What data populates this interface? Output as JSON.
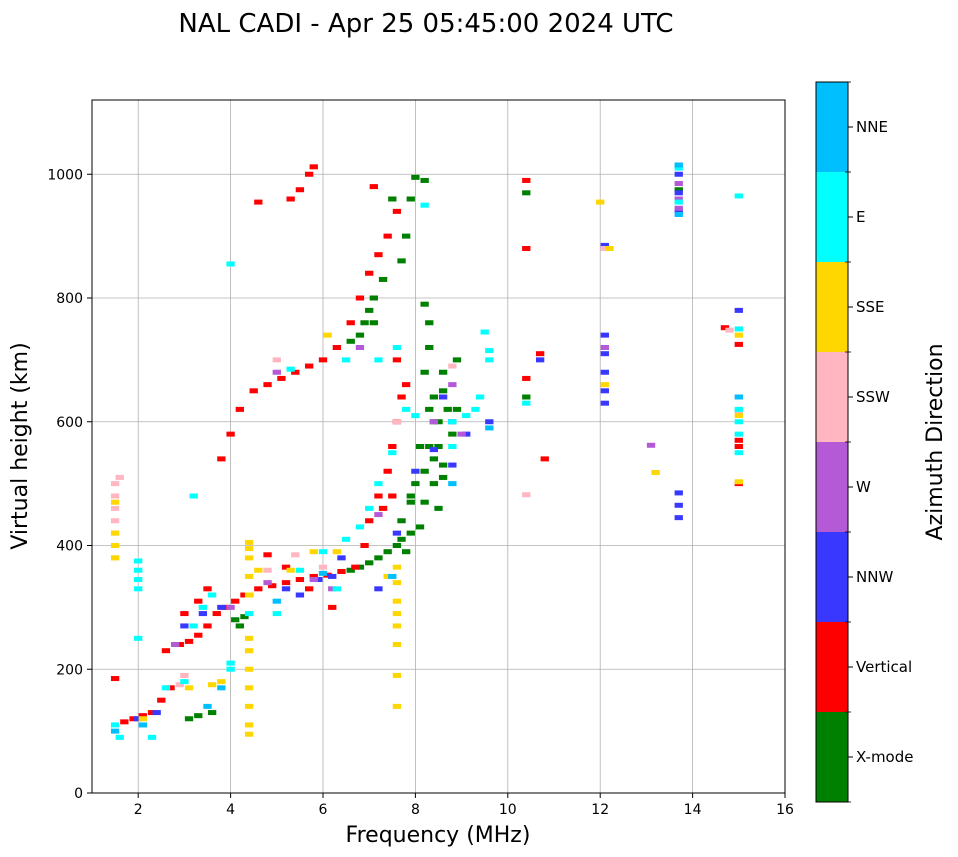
{
  "chart_data": {
    "type": "scatter",
    "title": "NAL CADI - Apr 25 05:45:00 2024 UTC",
    "xlabel": "Frequency (MHz)",
    "ylabel": "Virtual height (km)",
    "xlim": [
      1,
      16
    ],
    "ylim": [
      0,
      1120
    ],
    "xticks": [
      2,
      4,
      6,
      8,
      10,
      12,
      14,
      16
    ],
    "yticks": [
      0,
      200,
      400,
      600,
      800,
      1000
    ],
    "grid": true,
    "colorbar": {
      "label": "Azimuth Direction",
      "categories": [
        "X-mode",
        "Vertical",
        "NNW",
        "W",
        "SSW",
        "SSE",
        "E",
        "NNE"
      ],
      "colors": [
        "#008000",
        "#ff0000",
        "#3838ff",
        "#b45ad6",
        "#ffb6c1",
        "#ffd700",
        "#00ffff",
        "#00bfff"
      ]
    },
    "series": [
      {
        "name": "X-mode",
        "points": [
          [
            3.1,
            120
          ],
          [
            3.3,
            125
          ],
          [
            3.6,
            130
          ],
          [
            4.1,
            280
          ],
          [
            4.3,
            285
          ],
          [
            4.2,
            270
          ],
          [
            6.6,
            360
          ],
          [
            6.8,
            365
          ],
          [
            7.0,
            372
          ],
          [
            7.2,
            380
          ],
          [
            7.4,
            390
          ],
          [
            7.6,
            400
          ],
          [
            7.9,
            420
          ],
          [
            7.9,
            470
          ],
          [
            8.0,
            500
          ],
          [
            8.2,
            520
          ],
          [
            8.3,
            560
          ],
          [
            8.5,
            600
          ],
          [
            8.4,
            640
          ],
          [
            8.6,
            650
          ],
          [
            8.2,
            680
          ],
          [
            8.3,
            720
          ],
          [
            8.3,
            760
          ],
          [
            8.2,
            790
          ],
          [
            8.0,
            995
          ],
          [
            8.2,
            990
          ],
          [
            7.9,
            960
          ],
          [
            7.5,
            960
          ],
          [
            7.8,
            900
          ],
          [
            7.7,
            860
          ],
          [
            7.3,
            830
          ],
          [
            7.1,
            800
          ],
          [
            7.0,
            780
          ],
          [
            6.9,
            760
          ],
          [
            6.6,
            730
          ],
          [
            6.8,
            740
          ],
          [
            7.1,
            760
          ],
          [
            8.6,
            530
          ],
          [
            8.5,
            560
          ],
          [
            8.4,
            600
          ],
          [
            8.7,
            620
          ],
          [
            8.9,
            700
          ],
          [
            8.4,
            540
          ],
          [
            8.6,
            510
          ],
          [
            8.2,
            470
          ],
          [
            7.9,
            480
          ],
          [
            7.7,
            440
          ],
          [
            8.1,
            430
          ],
          [
            10.4,
            970
          ],
          [
            13.7,
            975
          ],
          [
            10.4,
            640
          ],
          [
            7.7,
            410
          ],
          [
            7.8,
            390
          ],
          [
            8.1,
            560
          ],
          [
            8.6,
            680
          ],
          [
            8.3,
            620
          ],
          [
            8.4,
            500
          ],
          [
            8.5,
            460
          ],
          [
            8.8,
            580
          ],
          [
            8.9,
            620
          ]
        ]
      },
      {
        "name": "Vertical",
        "points": [
          [
            1.5,
            185
          ],
          [
            1.7,
            115
          ],
          [
            1.9,
            120
          ],
          [
            2.1,
            125
          ],
          [
            2.3,
            130
          ],
          [
            2.5,
            150
          ],
          [
            2.7,
            170
          ],
          [
            2.9,
            240
          ],
          [
            3.1,
            245
          ],
          [
            3.3,
            255
          ],
          [
            3.5,
            270
          ],
          [
            3.7,
            290
          ],
          [
            3.9,
            300
          ],
          [
            4.1,
            310
          ],
          [
            4.3,
            320
          ],
          [
            4.6,
            330
          ],
          [
            4.9,
            335
          ],
          [
            5.2,
            340
          ],
          [
            5.5,
            345
          ],
          [
            5.8,
            350
          ],
          [
            6.1,
            352
          ],
          [
            6.4,
            358
          ],
          [
            6.7,
            365
          ],
          [
            6.9,
            400
          ],
          [
            7.0,
            440
          ],
          [
            7.2,
            480
          ],
          [
            7.4,
            520
          ],
          [
            7.5,
            560
          ],
          [
            7.6,
            600
          ],
          [
            7.7,
            640
          ],
          [
            7.8,
            660
          ],
          [
            7.6,
            700
          ],
          [
            7.5,
            480
          ],
          [
            7.3,
            460
          ],
          [
            3.8,
            540
          ],
          [
            4.0,
            580
          ],
          [
            4.2,
            620
          ],
          [
            4.5,
            650
          ],
          [
            4.8,
            660
          ],
          [
            5.1,
            670
          ],
          [
            5.4,
            680
          ],
          [
            5.7,
            690
          ],
          [
            6.0,
            700
          ],
          [
            6.3,
            720
          ],
          [
            6.6,
            760
          ],
          [
            6.8,
            800
          ],
          [
            7.0,
            840
          ],
          [
            7.2,
            870
          ],
          [
            7.4,
            900
          ],
          [
            7.6,
            940
          ],
          [
            7.1,
            980
          ],
          [
            5.3,
            960
          ],
          [
            5.5,
            975
          ],
          [
            5.7,
            1000
          ],
          [
            5.8,
            1012
          ],
          [
            4.6,
            955
          ],
          [
            10.4,
            990
          ],
          [
            10.4,
            880
          ],
          [
            10.4,
            670
          ],
          [
            10.7,
            710
          ],
          [
            10.8,
            540
          ],
          [
            15.0,
            560
          ],
          [
            15.0,
            570
          ],
          [
            14.7,
            752
          ],
          [
            15.0,
            500
          ],
          [
            15.0,
            725
          ],
          [
            3.3,
            310
          ],
          [
            3.0,
            290
          ],
          [
            2.6,
            230
          ],
          [
            3.5,
            330
          ],
          [
            4.8,
            385
          ],
          [
            5.2,
            365
          ],
          [
            5.7,
            330
          ],
          [
            6.2,
            300
          ]
        ]
      },
      {
        "name": "NNW",
        "points": [
          [
            2.0,
            120
          ],
          [
            2.4,
            130
          ],
          [
            3.0,
            270
          ],
          [
            3.4,
            290
          ],
          [
            3.8,
            300
          ],
          [
            4.4,
            320
          ],
          [
            5.2,
            330
          ],
          [
            5.9,
            345
          ],
          [
            6.4,
            380
          ],
          [
            7.2,
            330
          ],
          [
            7.6,
            420
          ],
          [
            8.0,
            520
          ],
          [
            8.4,
            555
          ],
          [
            8.8,
            530
          ],
          [
            8.8,
            600
          ],
          [
            9.1,
            580
          ],
          [
            9.6,
            600
          ],
          [
            10.7,
            700
          ],
          [
            12.1,
            630
          ],
          [
            12.1,
            650
          ],
          [
            12.1,
            680
          ],
          [
            12.1,
            710
          ],
          [
            12.1,
            740
          ],
          [
            12.1,
            885
          ],
          [
            13.7,
            445
          ],
          [
            13.7,
            465
          ],
          [
            13.7,
            485
          ],
          [
            13.7,
            940
          ],
          [
            13.7,
            970
          ],
          [
            13.7,
            1000
          ],
          [
            15.0,
            780
          ],
          [
            8.6,
            640
          ],
          [
            6.2,
            350
          ],
          [
            5.5,
            320
          ]
        ]
      },
      {
        "name": "W",
        "points": [
          [
            2.8,
            240
          ],
          [
            4.0,
            300
          ],
          [
            4.8,
            340
          ],
          [
            5.8,
            345
          ],
          [
            6.2,
            330
          ],
          [
            7.2,
            450
          ],
          [
            8.4,
            600
          ],
          [
            8.8,
            660
          ],
          [
            9.0,
            580
          ],
          [
            12.1,
            720
          ],
          [
            13.1,
            562
          ],
          [
            13.7,
            960
          ],
          [
            13.7,
            985
          ],
          [
            13.7,
            945
          ],
          [
            5.0,
            680
          ],
          [
            6.8,
            720
          ]
        ]
      },
      {
        "name": "SSW",
        "points": [
          [
            1.5,
            380
          ],
          [
            1.5,
            400
          ],
          [
            1.5,
            420
          ],
          [
            1.5,
            440
          ],
          [
            1.5,
            460
          ],
          [
            1.5,
            480
          ],
          [
            1.5,
            500
          ],
          [
            1.6,
            510
          ],
          [
            2.9,
            175
          ],
          [
            3.0,
            190
          ],
          [
            4.8,
            360
          ],
          [
            5.0,
            700
          ],
          [
            5.4,
            385
          ],
          [
            6.0,
            365
          ],
          [
            7.6,
            600
          ],
          [
            8.8,
            690
          ],
          [
            10.4,
            482
          ],
          [
            12.1,
            880
          ],
          [
            15.0,
            617
          ],
          [
            14.8,
            748
          ]
        ]
      },
      {
        "name": "SSE",
        "points": [
          [
            1.5,
            380
          ],
          [
            1.5,
            400
          ],
          [
            1.5,
            420
          ],
          [
            1.5,
            470
          ],
          [
            2.1,
            120
          ],
          [
            3.1,
            170
          ],
          [
            3.6,
            175
          ],
          [
            3.8,
            180
          ],
          [
            4.4,
            95
          ],
          [
            4.4,
            110
          ],
          [
            4.4,
            140
          ],
          [
            4.4,
            170
          ],
          [
            4.4,
            200
          ],
          [
            4.4,
            230
          ],
          [
            4.4,
            250
          ],
          [
            4.4,
            320
          ],
          [
            4.4,
            350
          ],
          [
            4.4,
            380
          ],
          [
            4.4,
            395
          ],
          [
            4.4,
            405
          ],
          [
            7.6,
            140
          ],
          [
            7.6,
            190
          ],
          [
            7.6,
            240
          ],
          [
            7.6,
            270
          ],
          [
            7.6,
            290
          ],
          [
            7.6,
            310
          ],
          [
            7.6,
            340
          ],
          [
            7.6,
            365
          ],
          [
            5.3,
            360
          ],
          [
            5.8,
            390
          ],
          [
            6.1,
            740
          ],
          [
            7.4,
            350
          ],
          [
            12.0,
            955
          ],
          [
            12.2,
            880
          ],
          [
            12.1,
            660
          ],
          [
            13.2,
            518
          ],
          [
            15.0,
            503
          ],
          [
            15.0,
            610
          ],
          [
            15.0,
            740
          ],
          [
            4.6,
            360
          ],
          [
            6.3,
            390
          ]
        ]
      },
      {
        "name": "E",
        "points": [
          [
            1.5,
            110
          ],
          [
            1.6,
            90
          ],
          [
            2.0,
            250
          ],
          [
            2.0,
            330
          ],
          [
            2.0,
            345
          ],
          [
            2.0,
            360
          ],
          [
            2.0,
            375
          ],
          [
            2.3,
            90
          ],
          [
            2.6,
            170
          ],
          [
            3.0,
            180
          ],
          [
            3.2,
            270
          ],
          [
            3.4,
            300
          ],
          [
            3.6,
            320
          ],
          [
            4.0,
            200
          ],
          [
            4.0,
            210
          ],
          [
            4.4,
            290
          ],
          [
            5.0,
            290
          ],
          [
            5.5,
            360
          ],
          [
            6.0,
            390
          ],
          [
            6.3,
            330
          ],
          [
            6.5,
            410
          ],
          [
            6.8,
            430
          ],
          [
            7.0,
            460
          ],
          [
            7.2,
            500
          ],
          [
            7.5,
            550
          ],
          [
            7.8,
            620
          ],
          [
            8.0,
            610
          ],
          [
            8.2,
            950
          ],
          [
            8.8,
            560
          ],
          [
            8.8,
            600
          ],
          [
            9.1,
            610
          ],
          [
            9.3,
            620
          ],
          [
            9.4,
            640
          ],
          [
            9.6,
            700
          ],
          [
            9.6,
            715
          ],
          [
            9.5,
            745
          ],
          [
            10.4,
            630
          ],
          [
            13.7,
            955
          ],
          [
            13.7,
            1010
          ],
          [
            15.0,
            550
          ],
          [
            15.0,
            580
          ],
          [
            15.0,
            600
          ],
          [
            15.0,
            620
          ],
          [
            15.0,
            750
          ],
          [
            15.0,
            965
          ],
          [
            3.2,
            480
          ],
          [
            4.0,
            855
          ],
          [
            5.3,
            685
          ],
          [
            6.5,
            700
          ],
          [
            7.2,
            700
          ],
          [
            7.6,
            720
          ]
        ]
      },
      {
        "name": "NNE",
        "points": [
          [
            1.5,
            100
          ],
          [
            2.1,
            110
          ],
          [
            3.5,
            140
          ],
          [
            5.0,
            310
          ],
          [
            6.0,
            355
          ],
          [
            7.5,
            350
          ],
          [
            8.8,
            500
          ],
          [
            9.6,
            590
          ],
          [
            13.7,
            935
          ],
          [
            13.7,
            1015
          ],
          [
            15.0,
            640
          ],
          [
            3.8,
            170
          ]
        ]
      }
    ]
  }
}
